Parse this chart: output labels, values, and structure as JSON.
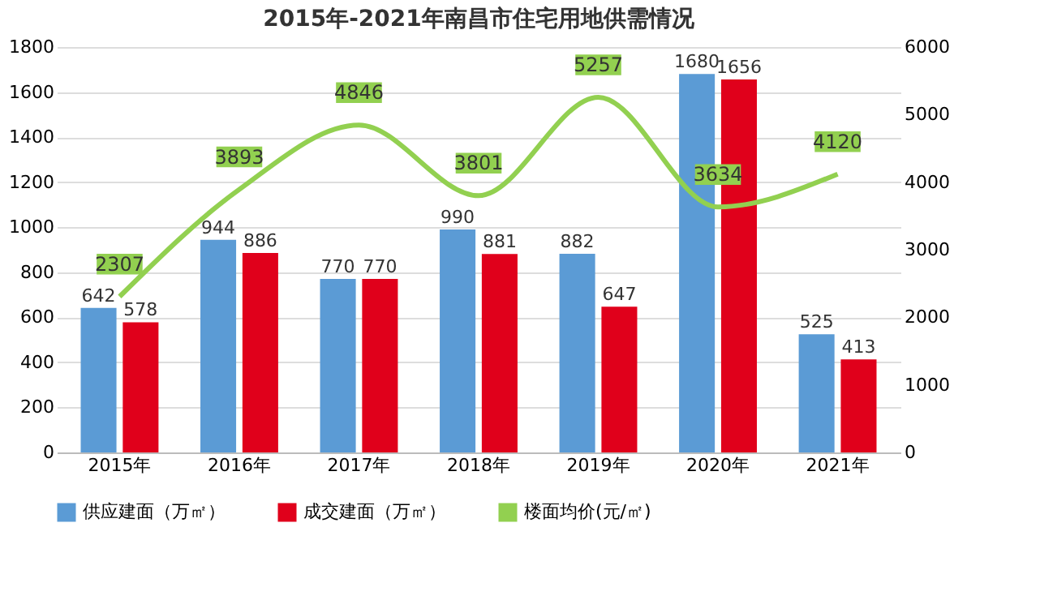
{
  "chart_data": {
    "type": "bar",
    "title": "2015年-2021年南昌市住宅用地供需情况",
    "categories": [
      "2015年",
      "2016年",
      "2017年",
      "2018年",
      "2019年",
      "2020年",
      "2021年"
    ],
    "series": [
      {
        "name": "供应建面（万㎡）",
        "color": "#5b9bd5",
        "values": [
          642,
          944,
          770,
          990,
          882,
          1680,
          525
        ]
      },
      {
        "name": "成交建面（万㎡）",
        "color": "#e0001b",
        "values": [
          578,
          886,
          770,
          881,
          647,
          1656,
          413
        ]
      },
      {
        "name": "楼面均价(元/㎡)",
        "color": "#92d050",
        "type": "line",
        "axis": "y2",
        "values": [
          2307,
          3893,
          4846,
          3801,
          5257,
          3634,
          4120
        ]
      }
    ],
    "ylim": [
      0,
      1800
    ],
    "yticks": [
      0,
      200,
      400,
      600,
      800,
      1000,
      1200,
      1400,
      1600,
      1800
    ],
    "y2lim": [
      0,
      6000
    ],
    "y2ticks": [
      0,
      1000,
      2000,
      3000,
      4000,
      5000,
      6000
    ],
    "grid": "y",
    "legend": "bottom",
    "data_labels": true
  }
}
